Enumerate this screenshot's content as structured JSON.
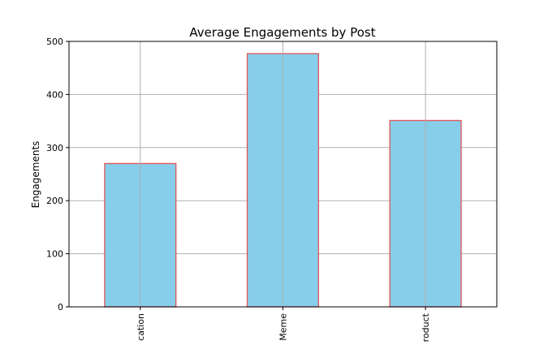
{
  "chart_data": {
    "type": "bar",
    "title": "Average Engagements by Post",
    "xlabel": "",
    "ylabel": "Engagements",
    "categories": [
      "Education",
      "Meme",
      "Product"
    ],
    "tick_labels_visible": [
      "cation",
      "Meme",
      "roduct"
    ],
    "values": [
      270,
      477,
      351
    ],
    "ylim": [
      0,
      500
    ],
    "yticks": [
      0,
      100,
      200,
      300,
      400,
      500
    ],
    "grid": true,
    "legend": "none",
    "colors": {
      "bar_fill": "#87CEEB",
      "bar_edge": "#E05555",
      "grid": "#b0b0b0",
      "axis": "#000000"
    }
  }
}
